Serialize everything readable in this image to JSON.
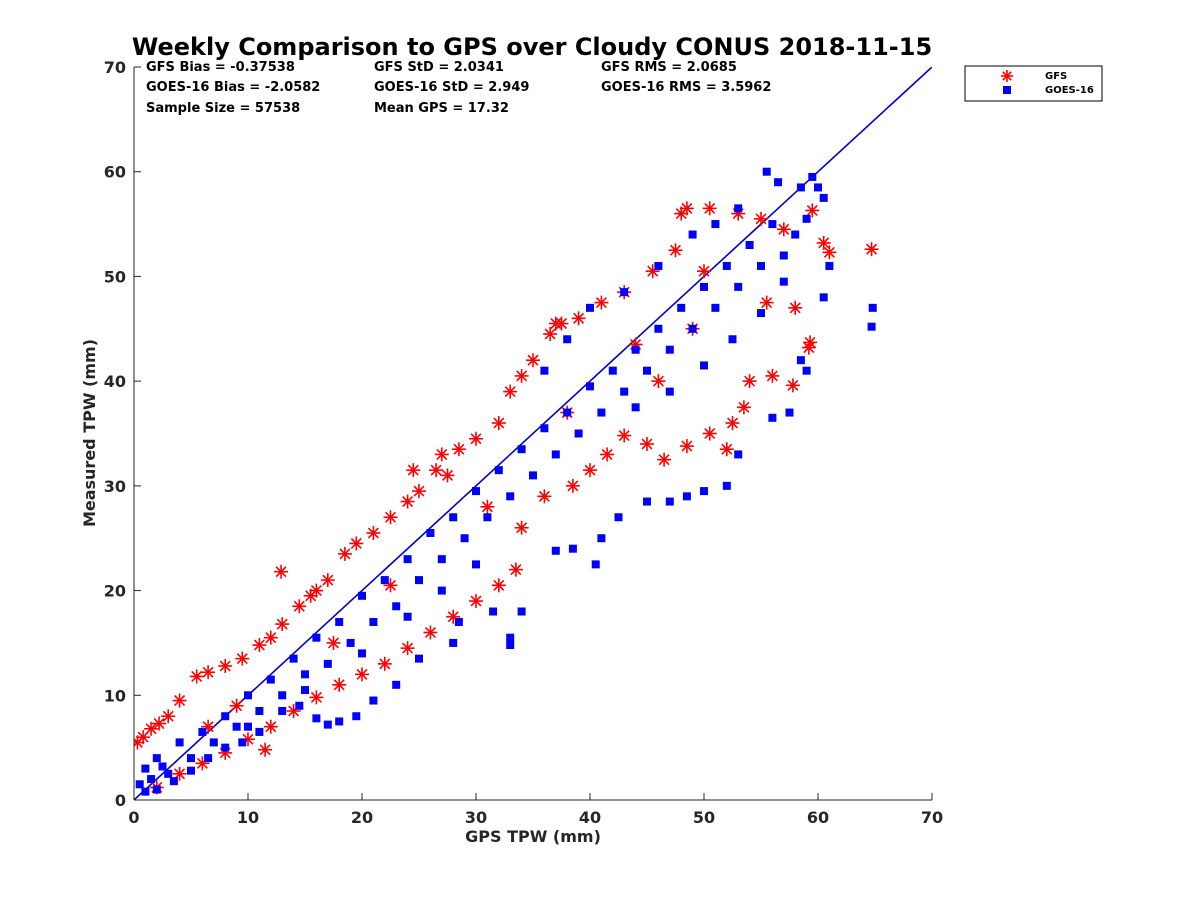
{
  "chart_data": {
    "type": "scatter",
    "title": "Weekly Comparison to GPS over Cloudy CONUS 2018-11-15",
    "xlabel": "GPS TPW (mm)",
    "ylabel": "Measured TPW (mm)",
    "xlim": [
      0,
      70
    ],
    "ylim": [
      0,
      70
    ],
    "xticks": [
      0,
      10,
      20,
      30,
      40,
      50,
      60,
      70
    ],
    "yticks": [
      0,
      10,
      20,
      30,
      40,
      50,
      60,
      70
    ],
    "grid": false,
    "legend_position": "outside-top-right",
    "reference_line": {
      "x": [
        0,
        70
      ],
      "y": [
        0,
        70
      ],
      "color": "#0000cc"
    },
    "stats": [
      [
        "GFS Bias = -0.37538",
        "GFS StD = 2.0341",
        "GFS RMS = 2.0685"
      ],
      [
        "GOES-16 Bias = -2.0582",
        "GOES-16 StD = 2.949",
        "GOES-16 RMS = 3.5962"
      ],
      [
        "Sample Size = 57538",
        "Mean GPS = 17.32"
      ]
    ],
    "series": [
      {
        "name": "GFS",
        "marker": "asterisk",
        "color": "#ff0000",
        "points": [
          [
            0.3,
            5.5
          ],
          [
            0.8,
            6.0
          ],
          [
            1.5,
            6.8
          ],
          [
            2.2,
            7.3
          ],
          [
            3.0,
            8.0
          ],
          [
            4.0,
            9.5
          ],
          [
            5.5,
            11.8
          ],
          [
            6.5,
            12.2
          ],
          [
            8.0,
            12.8
          ],
          [
            9.5,
            13.5
          ],
          [
            11.0,
            14.8
          ],
          [
            12.0,
            15.5
          ],
          [
            13.0,
            16.8
          ],
          [
            14.5,
            18.5
          ],
          [
            15.5,
            19.5
          ],
          [
            16.0,
            20.0
          ],
          [
            17.0,
            21.0
          ],
          [
            18.5,
            23.5
          ],
          [
            19.5,
            24.5
          ],
          [
            21.0,
            25.5
          ],
          [
            22.5,
            27.0
          ],
          [
            24.0,
            28.5
          ],
          [
            25.0,
            29.5
          ],
          [
            26.5,
            31.5
          ],
          [
            27.0,
            33.0
          ],
          [
            28.5,
            33.5
          ],
          [
            30.0,
            34.5
          ],
          [
            32.0,
            36.0
          ],
          [
            33.0,
            39.0
          ],
          [
            34.0,
            40.5
          ],
          [
            35.0,
            42.0
          ],
          [
            36.5,
            44.5
          ],
          [
            37.5,
            45.5
          ],
          [
            39.0,
            46.0
          ],
          [
            41.0,
            47.5
          ],
          [
            43.0,
            48.5
          ],
          [
            45.5,
            50.5
          ],
          [
            47.5,
            52.5
          ],
          [
            48.0,
            56.0
          ],
          [
            48.5,
            56.5
          ],
          [
            50.5,
            56.5
          ],
          [
            53.0,
            56.0
          ],
          [
            55.0,
            55.5
          ],
          [
            57.0,
            54.5
          ],
          [
            59.5,
            56.3
          ],
          [
            61.0,
            52.3
          ],
          [
            60.5,
            53.2
          ],
          [
            64.7,
            52.6
          ],
          [
            59.3,
            43.7
          ],
          [
            59.2,
            43.2
          ],
          [
            57.8,
            39.6
          ],
          [
            56.0,
            40.5
          ],
          [
            54.0,
            40.0
          ],
          [
            53.5,
            37.5
          ],
          [
            52.5,
            36.0
          ],
          [
            52.0,
            33.5
          ],
          [
            50.5,
            35.0
          ],
          [
            48.5,
            33.8
          ],
          [
            46.5,
            32.5
          ],
          [
            45.0,
            34.0
          ],
          [
            43.0,
            34.8
          ],
          [
            41.5,
            33.0
          ],
          [
            40.0,
            31.5
          ],
          [
            38.5,
            30.0
          ],
          [
            36.0,
            29.0
          ],
          [
            34.0,
            26.0
          ],
          [
            33.5,
            22.0
          ],
          [
            32.0,
            20.5
          ],
          [
            30.0,
            19.0
          ],
          [
            28.0,
            17.5
          ],
          [
            26.0,
            16.0
          ],
          [
            24.0,
            14.5
          ],
          [
            22.0,
            13.0
          ],
          [
            20.0,
            12.0
          ],
          [
            18.0,
            11.0
          ],
          [
            16.0,
            9.8
          ],
          [
            14.0,
            8.5
          ],
          [
            12.0,
            7.0
          ],
          [
            11.5,
            4.8
          ],
          [
            10.0,
            5.8
          ],
          [
            8.0,
            4.5
          ],
          [
            6.0,
            3.5
          ],
          [
            4.0,
            2.5
          ],
          [
            2.0,
            1.2
          ],
          [
            12.9,
            21.8
          ],
          [
            24.5,
            31.5
          ],
          [
            27.5,
            31.0
          ],
          [
            37.0,
            45.5
          ],
          [
            46.0,
            40.0
          ],
          [
            49.0,
            45.0
          ],
          [
            55.5,
            47.5
          ],
          [
            58.0,
            47.0
          ],
          [
            44.0,
            43.5
          ],
          [
            38.0,
            37.0
          ],
          [
            31.0,
            28.0
          ],
          [
            22.5,
            20.5
          ],
          [
            17.5,
            15.0
          ],
          [
            9.0,
            9.0
          ],
          [
            6.5,
            7.0
          ],
          [
            50.0,
            50.5
          ]
        ]
      },
      {
        "name": "GOES-16",
        "marker": "square",
        "color": "#0000ff",
        "points": [
          [
            0.5,
            1.5
          ],
          [
            1.0,
            3.0
          ],
          [
            1.5,
            2.0
          ],
          [
            2.0,
            4.0
          ],
          [
            2.5,
            3.2
          ],
          [
            3.0,
            2.5
          ],
          [
            4.0,
            5.5
          ],
          [
            5.0,
            4.0
          ],
          [
            6.0,
            6.5
          ],
          [
            7.0,
            5.5
          ],
          [
            8.0,
            8.0
          ],
          [
            9.0,
            7.0
          ],
          [
            10.0,
            10.0
          ],
          [
            11.0,
            8.5
          ],
          [
            12.0,
            11.5
          ],
          [
            13.0,
            10.0
          ],
          [
            14.0,
            13.5
          ],
          [
            15.0,
            12.0
          ],
          [
            16.0,
            15.5
          ],
          [
            17.0,
            13.0
          ],
          [
            18.0,
            17.0
          ],
          [
            19.0,
            15.0
          ],
          [
            20.0,
            19.5
          ],
          [
            21.0,
            17.0
          ],
          [
            22.0,
            21.0
          ],
          [
            23.0,
            18.5
          ],
          [
            24.0,
            23.0
          ],
          [
            25.0,
            21.0
          ],
          [
            26.0,
            25.5
          ],
          [
            27.0,
            23.0
          ],
          [
            28.0,
            27.0
          ],
          [
            29.0,
            25.0
          ],
          [
            30.0,
            29.5
          ],
          [
            31.0,
            27.0
          ],
          [
            32.0,
            31.5
          ],
          [
            33.0,
            29.0
          ],
          [
            34.0,
            33.5
          ],
          [
            35.0,
            31.0
          ],
          [
            36.0,
            35.5
          ],
          [
            37.0,
            33.0
          ],
          [
            38.0,
            37.0
          ],
          [
            39.0,
            35.0
          ],
          [
            40.0,
            39.5
          ],
          [
            41.0,
            37.0
          ],
          [
            42.0,
            41.0
          ],
          [
            43.0,
            39.0
          ],
          [
            44.0,
            43.0
          ],
          [
            45.0,
            41.0
          ],
          [
            46.0,
            45.0
          ],
          [
            47.0,
            43.0
          ],
          [
            48.0,
            47.0
          ],
          [
            49.0,
            45.0
          ],
          [
            50.0,
            49.0
          ],
          [
            51.0,
            47.0
          ],
          [
            52.0,
            51.0
          ],
          [
            53.0,
            49.0
          ],
          [
            54.0,
            53.0
          ],
          [
            55.0,
            51.0
          ],
          [
            56.0,
            55.0
          ],
          [
            57.0,
            52.0
          ],
          [
            58.0,
            54.0
          ],
          [
            59.0,
            55.5
          ],
          [
            60.0,
            58.5
          ],
          [
            59.5,
            59.5
          ],
          [
            55.5,
            60.0
          ],
          [
            56.5,
            59.0
          ],
          [
            58.5,
            58.5
          ],
          [
            60.5,
            57.5
          ],
          [
            61.0,
            51.0
          ],
          [
            60.5,
            48.0
          ],
          [
            64.8,
            47.0
          ],
          [
            64.7,
            45.2
          ],
          [
            59.0,
            41.0
          ],
          [
            58.5,
            42.0
          ],
          [
            57.5,
            37.0
          ],
          [
            56.0,
            36.5
          ],
          [
            53.0,
            33.0
          ],
          [
            52.0,
            30.0
          ],
          [
            50.0,
            29.5
          ],
          [
            48.5,
            29.0
          ],
          [
            47.0,
            28.5
          ],
          [
            45.0,
            28.5
          ],
          [
            42.5,
            27.0
          ],
          [
            41.0,
            25.0
          ],
          [
            40.5,
            22.5
          ],
          [
            38.5,
            24.0
          ],
          [
            37.0,
            23.8
          ],
          [
            33.0,
            15.5
          ],
          [
            33.0,
            14.8
          ],
          [
            34.0,
            18.0
          ],
          [
            31.5,
            18.0
          ],
          [
            28.5,
            17.0
          ],
          [
            28.0,
            15.0
          ],
          [
            25.0,
            13.5
          ],
          [
            23.0,
            11.0
          ],
          [
            21.0,
            9.5
          ],
          [
            19.5,
            8.0
          ],
          [
            18.0,
            7.5
          ],
          [
            17.0,
            7.2
          ],
          [
            16.0,
            7.8
          ],
          [
            14.5,
            9.0
          ],
          [
            13.0,
            8.5
          ],
          [
            11.0,
            6.5
          ],
          [
            9.5,
            5.5
          ],
          [
            8.0,
            5.0
          ],
          [
            6.5,
            4.0
          ],
          [
            5.0,
            2.8
          ],
          [
            3.5,
            1.8
          ],
          [
            2.0,
            1.0
          ],
          [
            1.0,
            0.8
          ],
          [
            36.0,
            41.0
          ],
          [
            38.0,
            44.0
          ],
          [
            40.0,
            47.0
          ],
          [
            43.0,
            48.5
          ],
          [
            46.0,
            51.0
          ],
          [
            49.0,
            54.0
          ],
          [
            51.0,
            55.0
          ],
          [
            53.0,
            56.5
          ],
          [
            44.0,
            37.5
          ],
          [
            47.0,
            39.0
          ],
          [
            50.0,
            41.5
          ],
          [
            52.5,
            44.0
          ],
          [
            55.0,
            46.5
          ],
          [
            57.0,
            49.5
          ],
          [
            30.0,
            22.5
          ],
          [
            27.0,
            20.0
          ],
          [
            24.0,
            17.5
          ],
          [
            20.0,
            14.0
          ],
          [
            15.0,
            10.5
          ],
          [
            10.0,
            7.0
          ]
        ]
      }
    ]
  }
}
